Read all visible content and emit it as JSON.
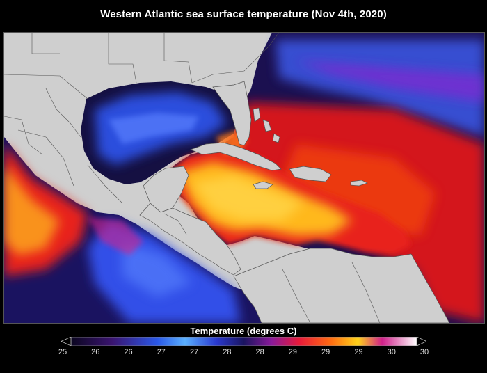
{
  "title": "Western Atlantic sea surface temperature (Nov 4th, 2020)",
  "colorbar": {
    "label": "Temperature (degrees C)",
    "ticks": [
      "25",
      "26",
      "26",
      "27",
      "27",
      "28",
      "28",
      "29",
      "29",
      "29",
      "30",
      "30"
    ],
    "extend": "both"
  },
  "colors": {
    "background": "#000000",
    "land": "#cfcfcf",
    "borders": "#555555",
    "cold": "#1c1a6a",
    "cool": "#3a6cf0",
    "mid": "#8a1aa0",
    "warm": "#e8231a",
    "hot": "#ffc21a"
  }
}
